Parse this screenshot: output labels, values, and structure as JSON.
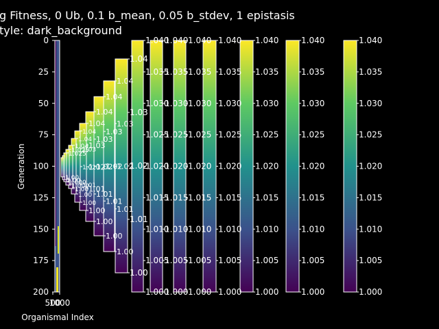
{
  "chart_data": {
    "type": "heatmap",
    "title_lines": [
      "g Fitness, 0 Ub, 0.1 b_mean, 0.05 b_stdev, 1 epistasis",
      "tyle: dark_background"
    ],
    "xlabel": "Organismal Index",
    "ylabel": "Generation",
    "xticks": [
      "500",
      "1000"
    ],
    "yticks": [
      0,
      25,
      50,
      75,
      100,
      125,
      150,
      175,
      200
    ],
    "ylim": [
      200,
      0
    ],
    "colormap": "viridis",
    "colorbar_range": [
      1.0,
      1.04
    ],
    "colorbar_ticks_fine": [
      "1.000",
      "1.005",
      "1.010",
      "1.015",
      "1.020",
      "1.025",
      "1.030",
      "1.035",
      "1.040"
    ],
    "colorbar_ticks_mid": [
      "1.00",
      "1.01",
      "1.02",
      "1.03",
      "1.04"
    ],
    "colorbar_ticks_coarse": [
      "1.00",
      "1.04"
    ],
    "colorbar_ticks_small": [
      "1.000",
      "1.025"
    ],
    "colorbar_ticks_trace": [
      "1.00"
    ]
  },
  "colors": {
    "background": "#000000",
    "foreground": "#ffffff",
    "viridis": [
      "#440154",
      "#3b528b",
      "#21918c",
      "#5ec962",
      "#fde725"
    ]
  }
}
